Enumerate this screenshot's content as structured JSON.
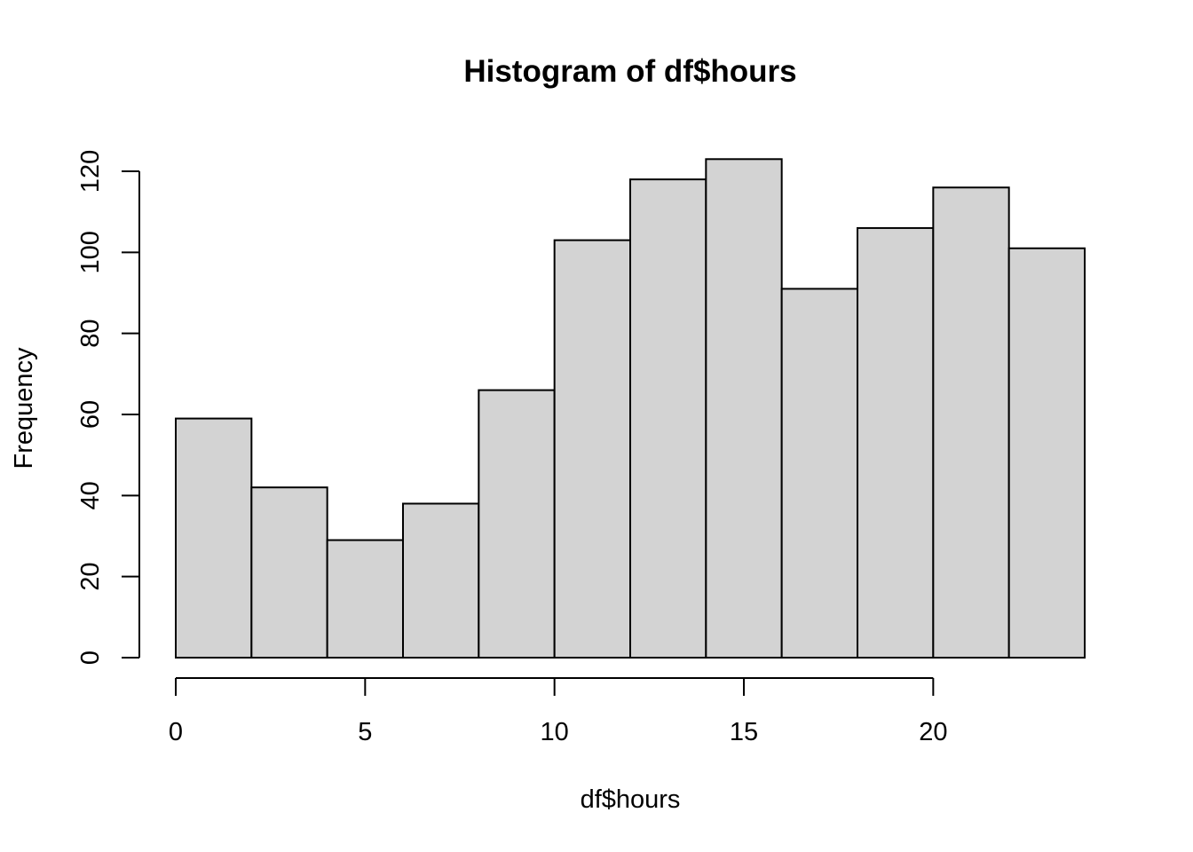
{
  "chart_data": {
    "type": "bar",
    "title": "Histogram of df$hours",
    "xlabel": "df$hours",
    "ylabel": "Frequency",
    "bins": [
      {
        "start": 0,
        "end": 2,
        "count": 59
      },
      {
        "start": 2,
        "end": 4,
        "count": 42
      },
      {
        "start": 4,
        "end": 6,
        "count": 29
      },
      {
        "start": 6,
        "end": 8,
        "count": 38
      },
      {
        "start": 8,
        "end": 10,
        "count": 66
      },
      {
        "start": 10,
        "end": 12,
        "count": 103
      },
      {
        "start": 12,
        "end": 14,
        "count": 118
      },
      {
        "start": 14,
        "end": 16,
        "count": 123
      },
      {
        "start": 16,
        "end": 18,
        "count": 91
      },
      {
        "start": 18,
        "end": 20,
        "count": 106
      },
      {
        "start": 20,
        "end": 22,
        "count": 116
      },
      {
        "start": 22,
        "end": 24,
        "count": 101
      }
    ],
    "xlim": [
      0,
      24
    ],
    "ylim": [
      0,
      120
    ],
    "x_ticks": [
      "0",
      "5",
      "10",
      "15",
      "20"
    ],
    "y_ticks": [
      "0",
      "20",
      "40",
      "60",
      "80",
      "100",
      "120"
    ],
    "grid": false,
    "bar_color": "#d3d3d3",
    "border_color": "#000000"
  }
}
